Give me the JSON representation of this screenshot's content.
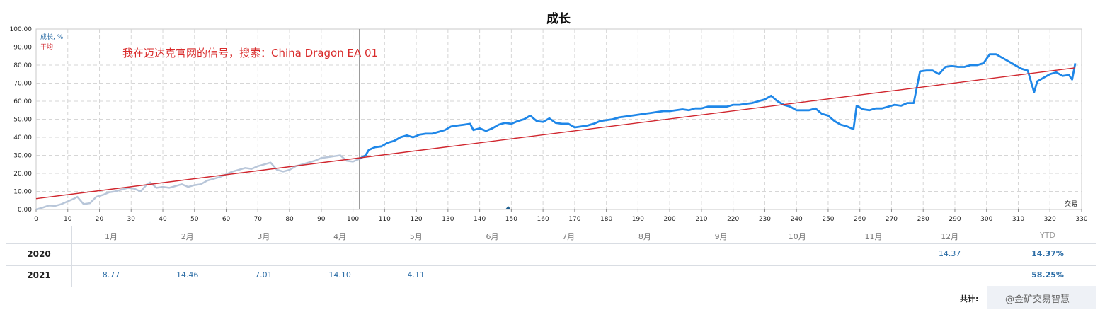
{
  "chart_data": {
    "type": "line",
    "title": "成长",
    "xlabel": "交易",
    "xlim": [
      0,
      330
    ],
    "ylim": [
      0,
      100
    ],
    "x_ticks": [
      "0",
      "10",
      "20",
      "30",
      "40",
      "50",
      "60",
      "70",
      "80",
      "90",
      "100",
      "110",
      "120",
      "130",
      "140",
      "150",
      "160",
      "170",
      "180",
      "190",
      "200",
      "210",
      "220",
      "230",
      "240",
      "250",
      "260",
      "270",
      "280",
      "290",
      "300",
      "310",
      "320",
      "330"
    ],
    "y_ticks": [
      "0.00",
      "10.00",
      "20.00",
      "30.00",
      "40.00",
      "50.00",
      "60.00",
      "70.00",
      "80.00",
      "90.00",
      "100.00"
    ],
    "legend": [
      "成长, %",
      "平均"
    ],
    "legend_position": "top-left",
    "grid": true,
    "annotation": "我在迈达克官网的信号，搜索：China Dragon EA 01",
    "series": [
      {
        "name": "成长, %",
        "color": "#1f87e8",
        "points": [
          [
            0,
            0
          ],
          [
            2,
            1
          ],
          [
            4,
            2.2
          ],
          [
            6,
            2
          ],
          [
            8,
            3
          ],
          [
            10,
            4.5
          ],
          [
            12,
            6
          ],
          [
            13,
            7
          ],
          [
            15,
            3
          ],
          [
            17,
            3.5
          ],
          [
            19,
            7
          ],
          [
            21,
            8
          ],
          [
            23,
            9.5
          ],
          [
            25,
            10
          ],
          [
            27,
            11
          ],
          [
            29,
            12
          ],
          [
            31,
            11.5
          ],
          [
            33,
            10
          ],
          [
            35,
            14
          ],
          [
            36,
            15
          ],
          [
            38,
            12
          ],
          [
            40,
            12.5
          ],
          [
            42,
            12
          ],
          [
            44,
            13
          ],
          [
            46,
            14
          ],
          [
            48,
            12.5
          ],
          [
            50,
            13.5
          ],
          [
            52,
            14
          ],
          [
            54,
            16
          ],
          [
            56,
            17
          ],
          [
            58,
            18
          ],
          [
            60,
            19.5
          ],
          [
            62,
            21
          ],
          [
            64,
            22
          ],
          [
            66,
            23
          ],
          [
            68,
            22.5
          ],
          [
            70,
            24
          ],
          [
            72,
            25
          ],
          [
            74,
            26
          ],
          [
            76,
            22
          ],
          [
            78,
            21
          ],
          [
            80,
            22
          ],
          [
            82,
            24
          ],
          [
            84,
            25
          ],
          [
            86,
            26
          ],
          [
            88,
            27
          ],
          [
            90,
            28.5
          ],
          [
            92,
            29
          ],
          [
            94,
            29.5
          ],
          [
            96,
            30
          ],
          [
            98,
            27
          ],
          [
            100,
            26.5
          ],
          [
            102,
            28
          ],
          [
            104,
            30
          ],
          [
            105,
            33
          ],
          [
            107,
            34.5
          ],
          [
            109,
            35
          ],
          [
            111,
            37
          ],
          [
            113,
            38
          ],
          [
            115,
            40
          ],
          [
            117,
            41
          ],
          [
            119,
            40
          ],
          [
            121,
            41.5
          ],
          [
            123,
            42
          ],
          [
            125,
            42
          ],
          [
            127,
            43
          ],
          [
            129,
            44
          ],
          [
            131,
            46
          ],
          [
            133,
            46.5
          ],
          [
            135,
            47
          ],
          [
            137,
            47.5
          ],
          [
            138,
            44
          ],
          [
            140,
            45
          ],
          [
            142,
            43.5
          ],
          [
            144,
            45
          ],
          [
            146,
            47
          ],
          [
            148,
            48
          ],
          [
            150,
            47.5
          ],
          [
            152,
            49
          ],
          [
            154,
            50
          ],
          [
            156,
            52
          ],
          [
            158,
            49
          ],
          [
            160,
            48.5
          ],
          [
            162,
            50.5
          ],
          [
            164,
            48
          ],
          [
            166,
            47.5
          ],
          [
            168,
            47.5
          ],
          [
            170,
            45.5
          ],
          [
            172,
            46
          ],
          [
            174,
            46.5
          ],
          [
            176,
            47.5
          ],
          [
            178,
            49
          ],
          [
            180,
            49.5
          ],
          [
            182,
            50
          ],
          [
            184,
            51
          ],
          [
            186,
            51.5
          ],
          [
            188,
            52
          ],
          [
            190,
            52.5
          ],
          [
            192,
            53
          ],
          [
            194,
            53.5
          ],
          [
            196,
            54
          ],
          [
            198,
            54.5
          ],
          [
            200,
            54.5
          ],
          [
            202,
            55
          ],
          [
            204,
            55.5
          ],
          [
            206,
            55
          ],
          [
            208,
            56
          ],
          [
            210,
            56
          ],
          [
            212,
            57
          ],
          [
            214,
            57
          ],
          [
            216,
            57
          ],
          [
            218,
            57
          ],
          [
            220,
            58
          ],
          [
            222,
            58
          ],
          [
            224,
            58.5
          ],
          [
            226,
            59
          ],
          [
            228,
            60
          ],
          [
            230,
            61
          ],
          [
            232,
            63
          ],
          [
            234,
            60
          ],
          [
            236,
            58
          ],
          [
            238,
            57
          ],
          [
            240,
            55
          ],
          [
            242,
            55
          ],
          [
            244,
            55
          ],
          [
            246,
            56
          ],
          [
            248,
            53
          ],
          [
            250,
            52
          ],
          [
            252,
            49
          ],
          [
            254,
            47
          ],
          [
            256,
            46
          ],
          [
            258,
            44.5
          ],
          [
            259,
            57.5
          ],
          [
            261,
            55.5
          ],
          [
            263,
            55
          ],
          [
            265,
            56
          ],
          [
            267,
            56
          ],
          [
            269,
            57
          ],
          [
            271,
            58
          ],
          [
            273,
            57.5
          ],
          [
            275,
            59
          ],
          [
            277,
            59
          ],
          [
            279,
            76.5
          ],
          [
            281,
            77
          ],
          [
            283,
            77
          ],
          [
            285,
            75
          ],
          [
            287,
            79
          ],
          [
            289,
            79.5
          ],
          [
            291,
            79
          ],
          [
            293,
            79
          ],
          [
            295,
            80
          ],
          [
            297,
            80
          ],
          [
            299,
            81
          ],
          [
            301,
            86
          ],
          [
            303,
            86
          ],
          [
            305,
            84
          ],
          [
            307,
            82
          ],
          [
            309,
            80
          ],
          [
            311,
            78
          ],
          [
            313,
            77
          ],
          [
            315,
            65
          ],
          [
            316,
            71
          ],
          [
            318,
            73
          ],
          [
            320,
            75
          ],
          [
            322,
            76
          ],
          [
            324,
            74
          ],
          [
            326,
            74.5
          ],
          [
            327,
            72
          ],
          [
            328,
            81
          ]
        ]
      },
      {
        "name": "平均",
        "color": "#d0262e",
        "points": [
          [
            0,
            6
          ],
          [
            328,
            78.5
          ]
        ]
      }
    ]
  },
  "table": {
    "months": [
      "1月",
      "2月",
      "3月",
      "4月",
      "5月",
      "6月",
      "7月",
      "8月",
      "9月",
      "10月",
      "11月",
      "12月"
    ],
    "ytd_header": "YTD",
    "rows": [
      {
        "year": "2020",
        "values": [
          "",
          "",
          "",
          "",
          "",
          "",
          "",
          "",
          "",
          "",
          "",
          "14.37"
        ],
        "ytd": "14.37%"
      },
      {
        "year": "2021",
        "values": [
          "8.77",
          "14.46",
          "7.01",
          "14.10",
          "4.11",
          "",
          "",
          "",
          "",
          "",
          "",
          ""
        ],
        "ytd": "58.25%"
      }
    ],
    "total_label": "共计:"
  },
  "watermark": "@金矿交易智慧"
}
